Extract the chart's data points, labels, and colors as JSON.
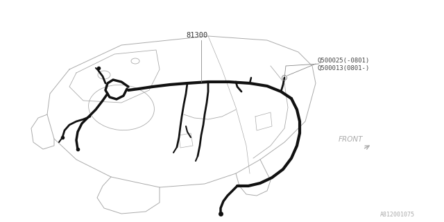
{
  "bg_color": "#ffffff",
  "line_color": "#aaaaaa",
  "harness_color": "#111111",
  "label_81300": "81300",
  "label_q1": "Q500025(-0801)",
  "label_q2": "Q500013(0801-)",
  "label_front": "FRONT",
  "watermark": "A812001075",
  "fig_width": 6.4,
  "fig_height": 3.2,
  "dpi": 100
}
